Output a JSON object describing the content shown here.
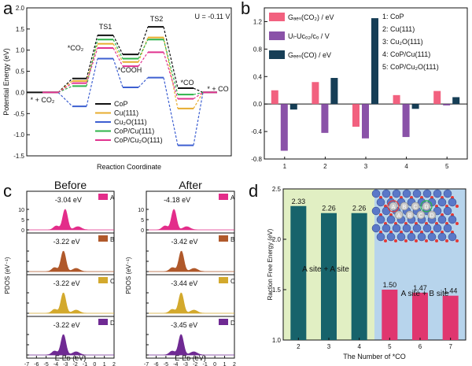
{
  "panels": {
    "a": "a",
    "b": "b",
    "c": "c",
    "d": "d"
  },
  "chart_data": [
    {
      "panel": "a",
      "type": "line",
      "title": "U = -0.11 V",
      "xlabel": "Reaction Coordinate",
      "ylabel": "Potential Energy (eV)",
      "ylim": [
        -1.5,
        2.0
      ],
      "yticks": [
        "-1.5",
        "-1.0",
        "-0.5",
        "0.0",
        "0.5",
        "1.0",
        "1.5",
        "2.0"
      ],
      "steps": [
        "* + CO₂",
        "*CO₂",
        "TS1",
        "*COOH",
        "TS2",
        "*CO",
        "* + CO"
      ],
      "step_labels": {
        "s0": "* + CO₂",
        "s1": "*CO₂",
        "s2": "TS1",
        "s3": "*COOH",
        "s4": "TS2",
        "s5": "*CO",
        "s6": "* + CO"
      },
      "series": [
        {
          "name": "CoP",
          "color": "#111111",
          "values": [
            0,
            0.33,
            1.35,
            0.9,
            1.55,
            0.1,
            0
          ]
        },
        {
          "name": "Cu(111)",
          "color": "#e7ac2f",
          "values": [
            0,
            0.27,
            1.15,
            0.72,
            1.3,
            -0.38,
            0
          ]
        },
        {
          "name": "Cu₂O(111)",
          "color": "#3d5fd1",
          "values": [
            0,
            -0.33,
            0.8,
            0.12,
            0.35,
            -1.25,
            0
          ]
        },
        {
          "name": "CoP/Cu(111)",
          "color": "#2eb34a",
          "values": [
            0,
            0.15,
            1.25,
            0.8,
            1.25,
            -0.05,
            0
          ]
        },
        {
          "name": "CoP/Cu₂O(111)",
          "color": "#e0338f",
          "values": [
            0,
            0.22,
            1.05,
            0.62,
            0.95,
            -0.15,
            0
          ]
        }
      ]
    },
    {
      "panel": "b",
      "type": "bar",
      "ylim": [
        -0.8,
        1.4
      ],
      "yticks": [
        "-0.8",
        "-0.4",
        "0.0",
        "0.4",
        "0.8",
        "1.2"
      ],
      "categories": [
        "1",
        "2",
        "3",
        "4",
        "5"
      ],
      "series": [
        {
          "name": "G_ads(CO2)",
          "legend": "Gₐₑₛ(CO₂) / eV",
          "color": "#f2617f",
          "values": [
            0.2,
            0.32,
            -0.33,
            0.13,
            0.19
          ]
        },
        {
          "name": "UL-UCO2/CO",
          "legend": "Uₗ-Uᴄₒ₂/ᴄₒ / V",
          "color": "#8a52a8",
          "values": [
            -0.68,
            -0.42,
            -0.5,
            -0.48,
            -0.02
          ]
        },
        {
          "name": "G_des(CO)",
          "legend": "Gₑₑₛ(CO) / eV",
          "color": "#163e56",
          "values": [
            -0.08,
            0.38,
            1.25,
            -0.07,
            0.1
          ]
        }
      ],
      "key": [
        "1: CoP",
        "2: Cu(111)",
        "3: Cu₂O(111)",
        "4: CoP/Cu(111)",
        "5: CoP/Cu₂O(111)"
      ]
    },
    {
      "panel": "c",
      "type": "area",
      "xlabel": "E-Eᴅ (eV)",
      "ylabel": "PDOS (eV⁻¹)",
      "xlim": [
        -7,
        2
      ],
      "xticks": [
        "-7",
        "-6",
        "-5",
        "-4",
        "-3",
        "-2",
        "-1",
        "0",
        "1",
        "2"
      ],
      "yticks": [
        "0",
        "5",
        "10"
      ],
      "columns": [
        {
          "title": "Before",
          "rows": [
            {
              "site": "A",
              "color": "#e32d8a",
              "center_value": -3.04,
              "label": "-3.04 eV"
            },
            {
              "site": "B",
              "color": "#b0592b",
              "center_value": -3.22,
              "label": "-3.22 eV"
            },
            {
              "site": "C",
              "color": "#d3a92d",
              "center_value": -3.22,
              "label": "-3.22 eV"
            },
            {
              "site": "D",
              "color": "#6f2a93",
              "center_value": -3.22,
              "label": "-3.22 eV"
            }
          ]
        },
        {
          "title": "After",
          "rows": [
            {
              "site": "A",
              "color": "#e32d8a",
              "center_value": -4.18,
              "label": "-4.18 eV"
            },
            {
              "site": "B",
              "color": "#b0592b",
              "center_value": -3.42,
              "label": "-3.42 eV"
            },
            {
              "site": "C",
              "color": "#d3a92d",
              "center_value": -3.44,
              "label": "-3.44 eV"
            },
            {
              "site": "D",
              "color": "#6f2a93",
              "center_value": -3.45,
              "label": "-3.45 eV"
            }
          ]
        }
      ]
    },
    {
      "panel": "d",
      "type": "bar",
      "xlabel": "The Number of *CO",
      "ylabel": "Raction Free Energy (eV)",
      "ylim": [
        1.0,
        2.5
      ],
      "yticks": [
        "1.0",
        "1.5",
        "2.0",
        "2.5"
      ],
      "categories": [
        "2",
        "3",
        "4",
        "5",
        "6",
        "7"
      ],
      "values": [
        2.33,
        2.26,
        2.26,
        1.5,
        1.47,
        1.44
      ],
      "value_labels": [
        "2.33",
        "2.26",
        "2.26",
        "1.50",
        "1.47",
        "1.44"
      ],
      "colors": [
        "#17636b",
        "#17636b",
        "#17636b",
        "#e0366f",
        "#e0366f",
        "#e0366f"
      ],
      "regions": [
        {
          "label": "A site + A site",
          "color": "#e1efc3"
        },
        {
          "label": "A site + B site",
          "color": "#b7d4ec"
        }
      ],
      "inset_sites": [
        "A",
        "B",
        "C",
        "D",
        "A",
        "B",
        "C",
        "D"
      ]
    }
  ]
}
